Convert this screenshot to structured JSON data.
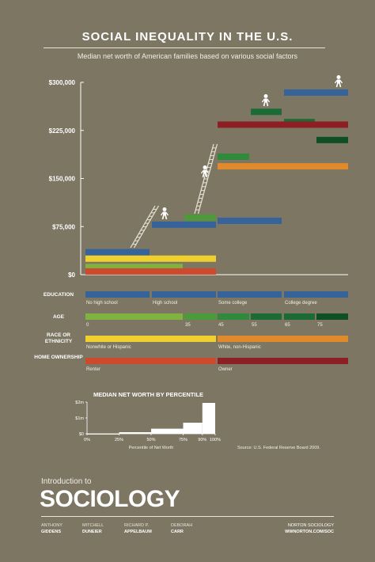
{
  "header": {
    "title": "SOCIAL INEQUALITY IN THE U.S.",
    "subtitle": "Median net worth of American families based on various social factors"
  },
  "colors": {
    "background": "#7c7663",
    "education": "#35639a",
    "age_light": "#7fb241",
    "age_mid": "#4d9a3b",
    "age_dark": "#1c6b35",
    "age_darkest": "#0f4f24",
    "race_nonwhite": "#f0d02e",
    "race_white": "#e08a2c",
    "home_renter": "#cd4b2c",
    "home_owner": "#8d1f24",
    "figure": "#ffffff"
  },
  "chart_data": [
    {
      "type": "bar",
      "title": "SOCIAL INEQUALITY IN THE U.S.",
      "subtitle": "Median net worth of American families based on various social factors",
      "ylabel": "",
      "ylim": [
        0,
        300000
      ],
      "yticks": [
        {
          "value": 0,
          "label": "$0"
        },
        {
          "value": 75000,
          "label": "$75,000"
        },
        {
          "value": 150000,
          "label": "$150,000"
        },
        {
          "value": 225000,
          "label": "$225,000"
        },
        {
          "value": 300000,
          "label": "$300,000"
        }
      ],
      "grid": false,
      "segments": [
        {
          "factor": "EDUCATION",
          "label": "No high school",
          "value": 35000,
          "color": "#35639a"
        },
        {
          "factor": "EDUCATION",
          "label": "High school",
          "value": 78000,
          "color": "#35639a"
        },
        {
          "factor": "EDUCATION",
          "label": "Some college",
          "value": 84000,
          "color": "#35639a"
        },
        {
          "factor": "EDUCATION",
          "label": "College degree",
          "value": 284000,
          "color": "#35639a"
        },
        {
          "factor": "AGE",
          "label": "0–35",
          "value": 12000,
          "color": "#7fb241"
        },
        {
          "factor": "AGE",
          "label": "35–45",
          "value": 89000,
          "color": "#4d9a3b"
        },
        {
          "factor": "AGE",
          "label": "45–55",
          "value": 184000,
          "color": "#2f8a3b"
        },
        {
          "factor": "AGE",
          "label": "55–65",
          "value": 254000,
          "color": "#1c6b35"
        },
        {
          "factor": "AGE",
          "label": "65–75",
          "value": 238000,
          "color": "#1c6b35"
        },
        {
          "factor": "AGE",
          "label": "75+",
          "value": 210000,
          "color": "#0f4f24"
        },
        {
          "factor": "RACE OR ETHNICITY",
          "label": "Nonwhite or Hispanic",
          "value": 25000,
          "color": "#f0d02e"
        },
        {
          "factor": "RACE OR ETHNICITY",
          "label": "White, non-Hispanic",
          "value": 169000,
          "color": "#e08a2c"
        },
        {
          "factor": "HOME OWNERSHIP",
          "label": "Renter",
          "value": 5000,
          "color": "#cd4b2c"
        },
        {
          "factor": "HOME OWNERSHIP",
          "label": "Owner",
          "value": 234000,
          "color": "#8d1f24"
        }
      ]
    },
    {
      "type": "bar",
      "title": "MEDIAN NET WORTH BY PERCENTILE",
      "xlabel": "Percentile of Net Worth",
      "ylabel": "",
      "ylim": [
        0,
        2000000
      ],
      "yticks": [
        {
          "value": 0,
          "label": "$0"
        },
        {
          "value": 1000000,
          "label": "$1m"
        },
        {
          "value": 2000000,
          "label": "$2m"
        }
      ],
      "xticks": [
        {
          "value": 0,
          "label": "0%"
        },
        {
          "value": 25,
          "label": "25%"
        },
        {
          "value": 50,
          "label": "50%"
        },
        {
          "value": 75,
          "label": "75%"
        },
        {
          "value": 90,
          "label": "90%"
        },
        {
          "value": 100,
          "label": "100%"
        }
      ],
      "bins": [
        {
          "from": 0,
          "to": 25,
          "value": 5000
        },
        {
          "from": 25,
          "to": 50,
          "value": 100000
        },
        {
          "from": 50,
          "to": 75,
          "value": 320000
        },
        {
          "from": 75,
          "to": 90,
          "value": 700000
        },
        {
          "from": 90,
          "to": 100,
          "value": 1950000
        }
      ]
    }
  ],
  "factor_bands": [
    {
      "name": "EDUCATION",
      "segments": [
        {
          "label": "No high school",
          "color": "#35639a"
        },
        {
          "label": "High school",
          "color": "#35639a"
        },
        {
          "label": "Some college",
          "color": "#35639a"
        },
        {
          "label": "College degree",
          "color": "#35639a"
        }
      ]
    },
    {
      "name": "AGE",
      "segments": [
        {
          "label": "0",
          "color": "#7fb241"
        },
        {
          "label": "35",
          "color": "#4d9a3b"
        },
        {
          "label": "45",
          "color": "#2f8a3b"
        },
        {
          "label": "55",
          "color": "#1c6b35"
        },
        {
          "label": "65",
          "color": "#1c6b35"
        },
        {
          "label": "75",
          "color": "#0f4f24"
        }
      ]
    },
    {
      "name": "RACE OR ETHNICITY",
      "segments": [
        {
          "label": "Nonwhite or Hispanic",
          "color": "#f0d02e"
        },
        {
          "label": "White, non-Hispanic",
          "color": "#e08a2c"
        }
      ]
    },
    {
      "name": "HOME OWNERSHIP",
      "segments": [
        {
          "label": "Renter",
          "color": "#cd4b2c"
        },
        {
          "label": "Owner",
          "color": "#8d1f24"
        }
      ]
    }
  ],
  "source": "Source: U.S. Federal Reserve Board 2009.",
  "footer": {
    "kicker": "Introduction to",
    "book_title": "SOCIOLOGY",
    "authors": [
      {
        "first": "ANTHONY",
        "last": "GIDDENS"
      },
      {
        "first": "MITCHELL",
        "last": "DUNEIER"
      },
      {
        "first": "RICHARD P.",
        "last": "APPELBAUM"
      },
      {
        "first": "DEBORAH",
        "last": "CARR"
      }
    ],
    "publisher": "NORTON SOCIOLOGY",
    "website": "WWNORTON.COM/SOC"
  }
}
